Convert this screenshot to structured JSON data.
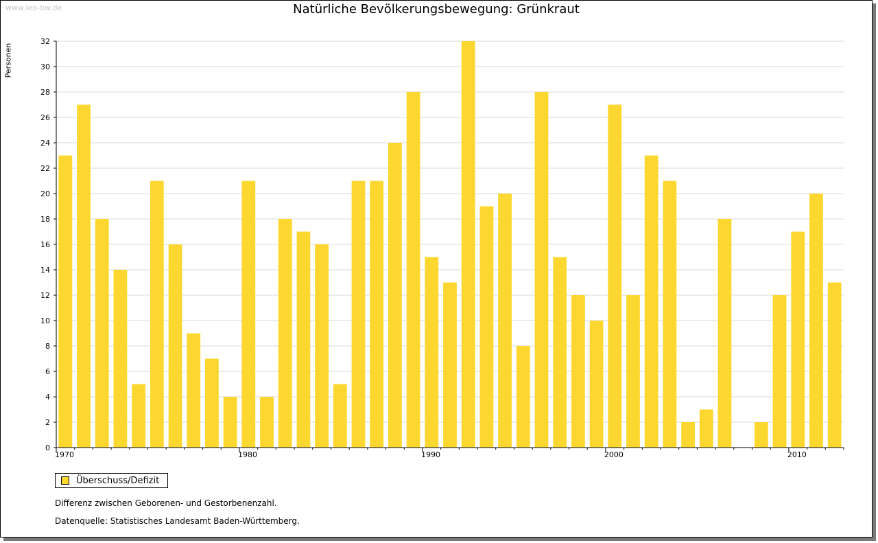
{
  "watermark": "www.leo-bw.de",
  "legend": {
    "label": "Überschuss/Defizit"
  },
  "notes": {
    "description": "Differenz zwischen Geborenen- und Gestorbenenzahl.",
    "source": "Datenquelle: Statistisches Landesamt Baden-Württemberg."
  },
  "colors": {
    "bar": "#fcd72f",
    "grid": "#d9d9d9",
    "axis": "#000000"
  },
  "chart_data": {
    "type": "bar",
    "title": "Natürliche Bevölkerungsbewegung: Grünkraut",
    "xlabel": "",
    "ylabel": "Personen",
    "ylim": [
      0,
      32
    ],
    "yticks": [
      0,
      2,
      4,
      6,
      8,
      10,
      12,
      14,
      16,
      18,
      20,
      22,
      24,
      26,
      28,
      30,
      32
    ],
    "xticks": [
      1970,
      1980,
      1990,
      2000,
      2010
    ],
    "categories": [
      1970,
      1971,
      1972,
      1973,
      1974,
      1975,
      1976,
      1977,
      1978,
      1979,
      1980,
      1981,
      1982,
      1983,
      1984,
      1985,
      1986,
      1987,
      1988,
      1989,
      1990,
      1991,
      1992,
      1993,
      1994,
      1995,
      1996,
      1997,
      1998,
      1999,
      2000,
      2001,
      2002,
      2003,
      2004,
      2005,
      2006,
      2007,
      2008,
      2009,
      2010,
      2011,
      2012
    ],
    "series": [
      {
        "name": "Überschuss/Defizit",
        "values": [
          23,
          27,
          18,
          14,
          5,
          21,
          16,
          9,
          7,
          4,
          21,
          4,
          18,
          17,
          16,
          5,
          21,
          21,
          24,
          28,
          15,
          13,
          32,
          19,
          20,
          8,
          28,
          15,
          12,
          10,
          27,
          12,
          23,
          21,
          2,
          3,
          18,
          0,
          2,
          12,
          17,
          20,
          13
        ]
      }
    ],
    "grid": true,
    "legend_position": "bottom-left"
  }
}
